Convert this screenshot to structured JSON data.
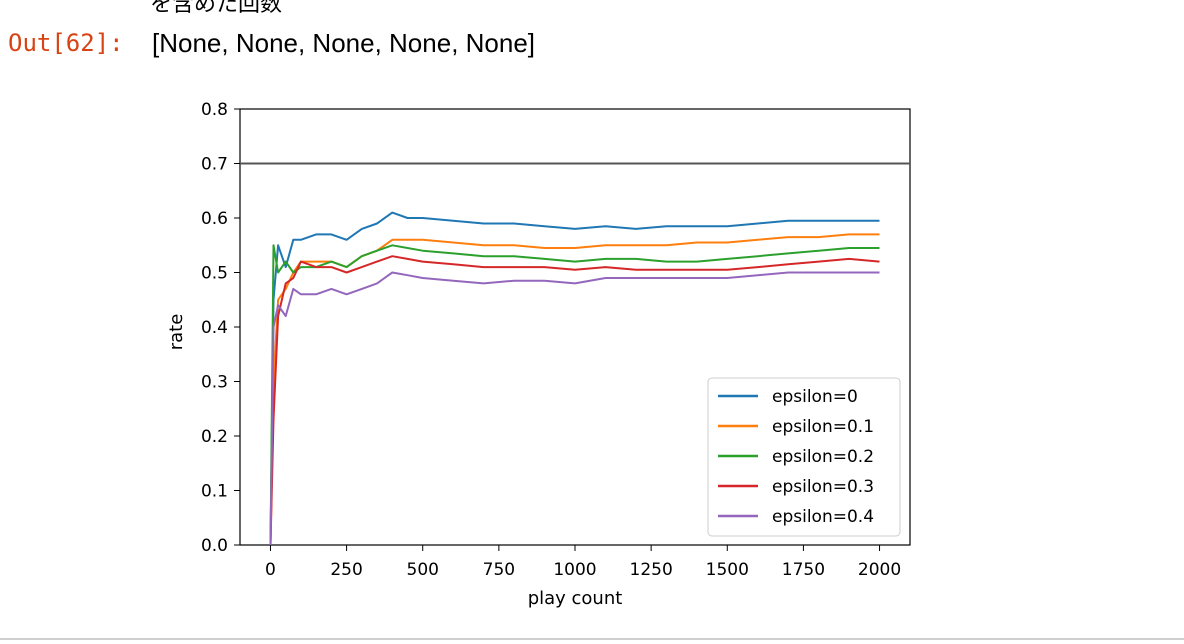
{
  "cell": {
    "prompt": "Out[62]:",
    "output": "[None, None, None, None, None]",
    "top_partial_text": "を含めた回数"
  },
  "chart_data": {
    "type": "line",
    "xlabel": "play count",
    "ylabel": "rate",
    "xlim": [
      -100,
      2100
    ],
    "ylim": [
      0.0,
      0.8
    ],
    "x_ticks": [
      "0",
      "250",
      "500",
      "750",
      "1000",
      "1250",
      "1500",
      "1750",
      "2000"
    ],
    "y_ticks": [
      "0.0",
      "0.1",
      "0.2",
      "0.3",
      "0.4",
      "0.5",
      "0.6",
      "0.7",
      "0.8"
    ],
    "reference_line": {
      "y": 0.7,
      "color": "#555555"
    },
    "legend_position": "lower-right",
    "grid": false,
    "series": [
      {
        "name": "epsilon=0",
        "color": "#1f77b4",
        "x": [
          0,
          10,
          25,
          50,
          75,
          100,
          150,
          200,
          250,
          300,
          350,
          400,
          450,
          500,
          600,
          700,
          800,
          900,
          1000,
          1100,
          1200,
          1300,
          1400,
          1500,
          1600,
          1700,
          1800,
          1900,
          2000
        ],
        "y": [
          0.0,
          0.45,
          0.55,
          0.51,
          0.56,
          0.56,
          0.57,
          0.57,
          0.56,
          0.58,
          0.59,
          0.61,
          0.6,
          0.6,
          0.595,
          0.59,
          0.59,
          0.585,
          0.58,
          0.585,
          0.58,
          0.585,
          0.585,
          0.585,
          0.59,
          0.595,
          0.595,
          0.595,
          0.595
        ]
      },
      {
        "name": "epsilon=0.1",
        "color": "#ff7f0e",
        "x": [
          0,
          10,
          25,
          50,
          75,
          100,
          150,
          200,
          250,
          300,
          350,
          400,
          450,
          500,
          600,
          700,
          800,
          900,
          1000,
          1100,
          1200,
          1300,
          1400,
          1500,
          1600,
          1700,
          1800,
          1900,
          2000
        ],
        "y": [
          0.0,
          0.3,
          0.45,
          0.47,
          0.5,
          0.52,
          0.52,
          0.52,
          0.51,
          0.53,
          0.54,
          0.56,
          0.56,
          0.56,
          0.555,
          0.55,
          0.55,
          0.545,
          0.545,
          0.55,
          0.55,
          0.55,
          0.555,
          0.555,
          0.56,
          0.565,
          0.565,
          0.57,
          0.57
        ]
      },
      {
        "name": "epsilon=0.2",
        "color": "#2ca02c",
        "x": [
          0,
          10,
          25,
          50,
          75,
          100,
          150,
          200,
          250,
          300,
          350,
          400,
          450,
          500,
          600,
          700,
          800,
          900,
          1000,
          1100,
          1200,
          1300,
          1400,
          1500,
          1600,
          1700,
          1800,
          1900,
          2000
        ],
        "y": [
          0.0,
          0.55,
          0.5,
          0.52,
          0.5,
          0.51,
          0.51,
          0.52,
          0.51,
          0.53,
          0.54,
          0.55,
          0.545,
          0.54,
          0.535,
          0.53,
          0.53,
          0.525,
          0.52,
          0.525,
          0.525,
          0.52,
          0.52,
          0.525,
          0.53,
          0.535,
          0.54,
          0.545,
          0.545
        ]
      },
      {
        "name": "epsilon=0.3",
        "color": "#d62728",
        "x": [
          0,
          10,
          25,
          50,
          75,
          100,
          150,
          200,
          250,
          300,
          350,
          400,
          450,
          500,
          600,
          700,
          800,
          900,
          1000,
          1100,
          1200,
          1300,
          1400,
          1500,
          1600,
          1700,
          1800,
          1900,
          2000
        ],
        "y": [
          0.0,
          0.23,
          0.42,
          0.48,
          0.49,
          0.52,
          0.51,
          0.51,
          0.5,
          0.51,
          0.52,
          0.53,
          0.525,
          0.52,
          0.515,
          0.51,
          0.51,
          0.51,
          0.505,
          0.51,
          0.505,
          0.505,
          0.505,
          0.505,
          0.51,
          0.515,
          0.52,
          0.525,
          0.52
        ]
      },
      {
        "name": "epsilon=0.4",
        "color": "#9467bd",
        "x": [
          0,
          10,
          25,
          50,
          75,
          100,
          150,
          200,
          250,
          300,
          350,
          400,
          450,
          500,
          600,
          700,
          800,
          900,
          1000,
          1100,
          1200,
          1300,
          1400,
          1500,
          1600,
          1700,
          1800,
          1900,
          2000
        ],
        "y": [
          0.0,
          0.4,
          0.44,
          0.42,
          0.47,
          0.46,
          0.46,
          0.47,
          0.46,
          0.47,
          0.48,
          0.5,
          0.495,
          0.49,
          0.485,
          0.48,
          0.485,
          0.485,
          0.48,
          0.49,
          0.49,
          0.49,
          0.49,
          0.49,
          0.495,
          0.5,
          0.5,
          0.5,
          0.5
        ]
      }
    ]
  }
}
